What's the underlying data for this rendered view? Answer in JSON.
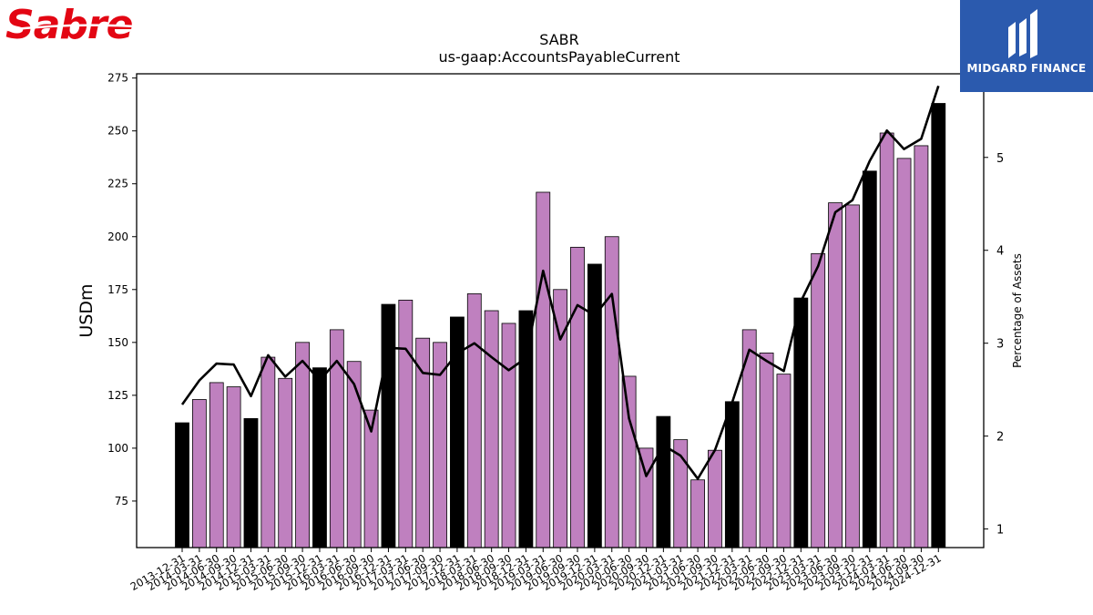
{
  "logos": {
    "left_text": "Sabre",
    "right_text": "MIDGARD FINANCE"
  },
  "colors": {
    "bar_quarter": "#bf80bf",
    "bar_year_end": "#000000",
    "line": "#000000",
    "sabre_red": "#e30613",
    "midgard_blue": "#2b5aae"
  },
  "chart_data": {
    "type": "bar",
    "title": "SABR",
    "subtitle": "us-gaap:AccountsPayableCurrent",
    "ylabel": "USDm",
    "y2label": "Percentage of Assets",
    "ylim": [
      53,
      277
    ],
    "y2lim": [
      0.8,
      5.9
    ],
    "yticks": [
      75,
      100,
      125,
      150,
      175,
      200,
      225,
      250,
      275
    ],
    "y2ticks": [
      1,
      2,
      3,
      4,
      5
    ],
    "categories": [
      "2013-12-31",
      "2014-03-31",
      "2014-06-30",
      "2014-09-30",
      "2014-12-31",
      "2015-03-31",
      "2015-06-30",
      "2015-09-30",
      "2015-12-31",
      "2016-03-31",
      "2016-06-30",
      "2016-09-30",
      "2016-12-31",
      "2017-03-31",
      "2017-06-30",
      "2017-09-30",
      "2017-12-31",
      "2018-03-31",
      "2018-06-30",
      "2018-09-30",
      "2018-12-31",
      "2019-03-31",
      "2019-06-30",
      "2019-09-30",
      "2019-12-31",
      "2020-03-31",
      "2020-06-30",
      "2020-09-30",
      "2020-12-31",
      "2021-03-31",
      "2021-06-30",
      "2021-09-30",
      "2021-12-31",
      "2022-03-31",
      "2022-06-30",
      "2022-09-30",
      "2022-12-31",
      "2023-03-31",
      "2023-06-30",
      "2023-09-30",
      "2023-12-31",
      "2024-03-31",
      "2024-06-30",
      "2024-09-30",
      "2024-12-31"
    ],
    "series": [
      {
        "type": "bar",
        "values": [
          112,
          123,
          131,
          129,
          114,
          143,
          133,
          150,
          138,
          156,
          141,
          118,
          168,
          170,
          152,
          150,
          162,
          173,
          165,
          159,
          165,
          221,
          175,
          195,
          187,
          200,
          134,
          100,
          115,
          104,
          85,
          99,
          122,
          156,
          145,
          135,
          171,
          192,
          216,
          215,
          231,
          249,
          237,
          243,
          263
        ]
      },
      {
        "type": "line",
        "axis": "right",
        "values": [
          2.34,
          2.6,
          2.78,
          2.77,
          2.43,
          2.87,
          2.64,
          2.81,
          2.6,
          2.81,
          2.56,
          2.05,
          2.95,
          2.94,
          2.68,
          2.66,
          2.89,
          3.0,
          2.85,
          2.71,
          2.84,
          3.78,
          3.04,
          3.41,
          3.3,
          3.53,
          2.19,
          1.57,
          1.9,
          1.79,
          1.54,
          1.85,
          2.36,
          2.93,
          2.81,
          2.7,
          3.45,
          3.83,
          4.41,
          4.54,
          4.96,
          5.29,
          5.09,
          5.2,
          5.77
        ]
      }
    ],
    "grid": false,
    "legend": "none"
  }
}
